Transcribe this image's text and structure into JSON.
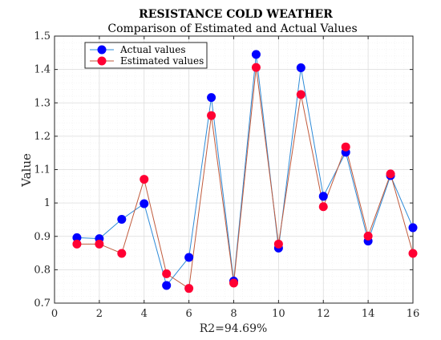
{
  "chart_data": {
    "type": "line",
    "title": "RESISTANCE COLD WEATHER",
    "subtitle": "Comparison of Estimated and Actual Values",
    "xlabel": "R2=94.69%",
    "ylabel": "Value",
    "xlim": [
      0,
      16
    ],
    "ylim": [
      0.7,
      1.5
    ],
    "xticks": [
      0,
      2,
      4,
      6,
      8,
      10,
      12,
      14,
      16
    ],
    "yticks": [
      0.7,
      0.8,
      0.9,
      1,
      1.1,
      1.2,
      1.3,
      1.4,
      1.5
    ],
    "x": [
      1,
      2,
      3,
      4,
      5,
      6,
      7,
      8,
      9,
      10,
      11,
      12,
      13,
      14,
      15,
      16
    ],
    "grid": true,
    "minor_grid": true,
    "legend_position": "top-left",
    "series": [
      {
        "name": "Actual values",
        "color": "#0000ff",
        "line_color": "#2e8bd8",
        "values": [
          0.896,
          0.893,
          0.951,
          0.998,
          0.753,
          0.837,
          1.316,
          0.766,
          1.445,
          0.865,
          1.405,
          1.02,
          1.152,
          0.886,
          1.082,
          0.926
        ]
      },
      {
        "name": "Estimated values",
        "color": "#ff0033",
        "line_color": "#c05a3c",
        "values": [
          0.877,
          0.877,
          0.849,
          1.071,
          0.788,
          0.744,
          1.262,
          0.76,
          1.406,
          0.877,
          1.325,
          0.989,
          1.168,
          0.901,
          1.087,
          0.849
        ]
      }
    ]
  }
}
